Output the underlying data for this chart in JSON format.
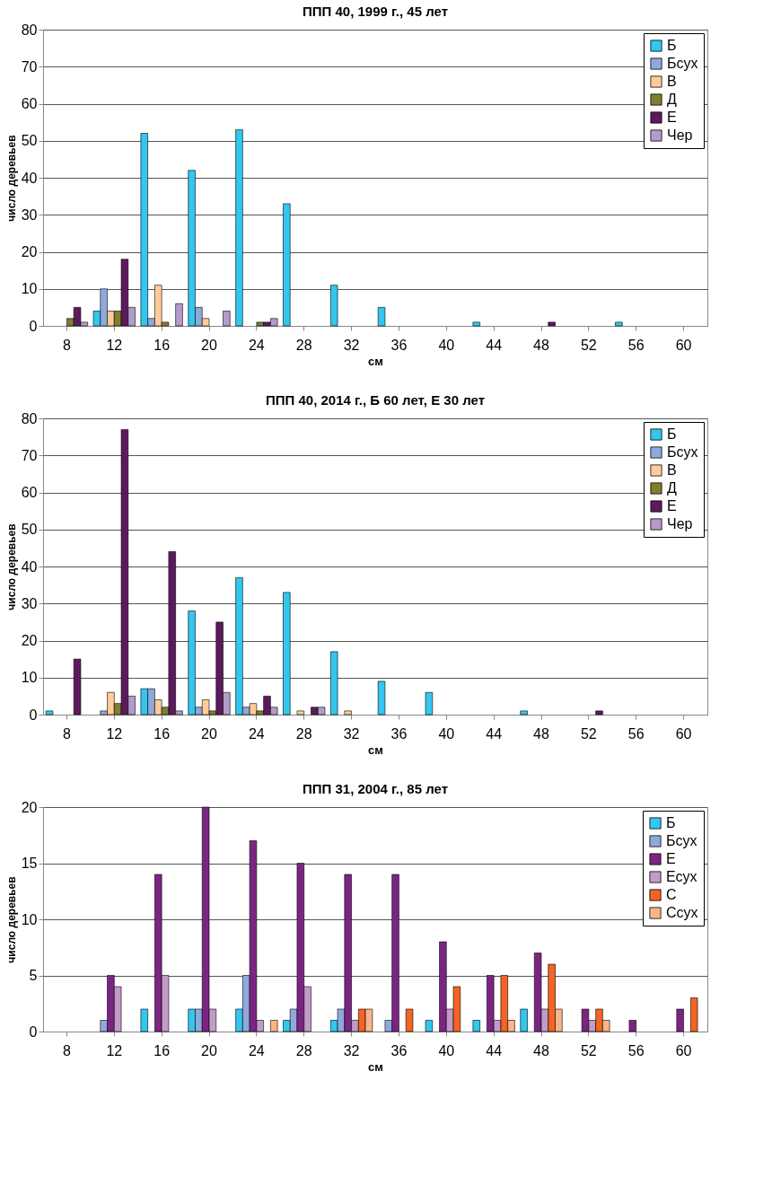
{
  "chart_data": [
    {
      "type": "bar",
      "title": "ППП 40, 1999 г., 45 лет",
      "xlabel": "см",
      "ylabel": "число деревьев",
      "categories": [
        "8",
        "12",
        "16",
        "20",
        "24",
        "28",
        "32",
        "36",
        "40",
        "44",
        "48",
        "52",
        "56",
        "60"
      ],
      "ylim": [
        0,
        80
      ],
      "yticks": [
        0,
        10,
        20,
        30,
        40,
        50,
        60,
        70,
        80
      ],
      "grid": "y",
      "legend": "top right",
      "series": [
        {
          "name": "Б",
          "color": "#33c6ee",
          "values": [
            null,
            4,
            52,
            42,
            53,
            33,
            11,
            5,
            null,
            1,
            null,
            null,
            1,
            null
          ]
        },
        {
          "name": "Бсух",
          "color": "#8fa9dc",
          "values": [
            null,
            10,
            2,
            5,
            null,
            null,
            null,
            null,
            null,
            null,
            null,
            null,
            null,
            null
          ]
        },
        {
          "name": "В",
          "color": "#ffcc99",
          "values": [
            null,
            4,
            11,
            2,
            null,
            null,
            null,
            null,
            null,
            null,
            null,
            null,
            null,
            null
          ]
        },
        {
          "name": "Д",
          "color": "#7f7f2f",
          "values": [
            2,
            4,
            1,
            null,
            1,
            null,
            null,
            null,
            null,
            null,
            null,
            null,
            null,
            null
          ]
        },
        {
          "name": "Е",
          "color": "#5c1a5e",
          "values": [
            5,
            18,
            null,
            null,
            1,
            null,
            null,
            null,
            null,
            null,
            1,
            null,
            null,
            null
          ]
        },
        {
          "name": "Чер",
          "color": "#b59bc9",
          "values": [
            1,
            5,
            6,
            4,
            2,
            null,
            null,
            null,
            null,
            null,
            null,
            null,
            null,
            null
          ]
        }
      ]
    },
    {
      "type": "bar",
      "title": "ППП 40, 2014 г., Б 60 лет, Е 30 лет",
      "xlabel": "см",
      "ylabel": "число деревьев",
      "categories": [
        "8",
        "12",
        "16",
        "20",
        "24",
        "28",
        "32",
        "36",
        "40",
        "44",
        "48",
        "52",
        "56",
        "60"
      ],
      "ylim": [
        0,
        80
      ],
      "yticks": [
        0,
        10,
        20,
        30,
        40,
        50,
        60,
        70,
        80
      ],
      "grid": "y",
      "legend": "top right",
      "series": [
        {
          "name": "Б",
          "color": "#33c6ee",
          "values": [
            1,
            null,
            7,
            28,
            37,
            33,
            17,
            9,
            6,
            null,
            1,
            null,
            null,
            null
          ]
        },
        {
          "name": "Бсух",
          "color": "#8fa9dc",
          "values": [
            null,
            1,
            7,
            2,
            2,
            null,
            null,
            null,
            null,
            null,
            null,
            null,
            null,
            null
          ]
        },
        {
          "name": "В",
          "color": "#ffcc99",
          "values": [
            null,
            6,
            4,
            4,
            3,
            1,
            1,
            null,
            null,
            null,
            null,
            null,
            null,
            null
          ]
        },
        {
          "name": "Д",
          "color": "#7f7f2f",
          "values": [
            null,
            3,
            2,
            1,
            1,
            null,
            null,
            null,
            null,
            null,
            null,
            null,
            null,
            null
          ]
        },
        {
          "name": "Е",
          "color": "#5c1a5e",
          "values": [
            15,
            77,
            44,
            25,
            5,
            2,
            null,
            null,
            null,
            null,
            null,
            1,
            null,
            null
          ]
        },
        {
          "name": "Чер",
          "color": "#b59bc9",
          "values": [
            null,
            5,
            1,
            6,
            2,
            2,
            null,
            null,
            null,
            null,
            null,
            null,
            null,
            null
          ]
        }
      ]
    },
    {
      "type": "bar",
      "title": "ППП 31, 2004 г., 85 лет",
      "xlabel": "см",
      "ylabel": "число деревьев",
      "categories": [
        "8",
        "12",
        "16",
        "20",
        "24",
        "28",
        "32",
        "36",
        "40",
        "44",
        "48",
        "52",
        "56",
        "60"
      ],
      "ylim": [
        0,
        20
      ],
      "yticks": [
        0,
        5,
        10,
        15,
        20
      ],
      "grid": "y",
      "legend": "top right",
      "series": [
        {
          "name": "Б",
          "color": "#33c6ee",
          "values": [
            null,
            null,
            2,
            2,
            2,
            1,
            1,
            null,
            1,
            1,
            2,
            null,
            null,
            null
          ]
        },
        {
          "name": "Бсух",
          "color": "#8fa9dc",
          "values": [
            null,
            1,
            null,
            2,
            5,
            2,
            2,
            1,
            null,
            null,
            null,
            null,
            null,
            null
          ]
        },
        {
          "name": "Е",
          "color": "#7b2582",
          "values": [
            null,
            5,
            14,
            20,
            17,
            15,
            14,
            14,
            8,
            5,
            7,
            2,
            1,
            2
          ]
        },
        {
          "name": "Есух",
          "color": "#c39bc8",
          "values": [
            null,
            4,
            5,
            2,
            1,
            4,
            1,
            null,
            2,
            1,
            2,
            1,
            null,
            null
          ]
        },
        {
          "name": "С",
          "color": "#f26522",
          "values": [
            null,
            null,
            null,
            null,
            null,
            null,
            2,
            2,
            4,
            5,
            6,
            2,
            null,
            3
          ]
        },
        {
          "name": "Ссух",
          "color": "#f9b48a",
          "values": [
            null,
            null,
            null,
            null,
            1,
            null,
            2,
            null,
            null,
            1,
            2,
            1,
            null,
            null
          ]
        }
      ]
    }
  ]
}
